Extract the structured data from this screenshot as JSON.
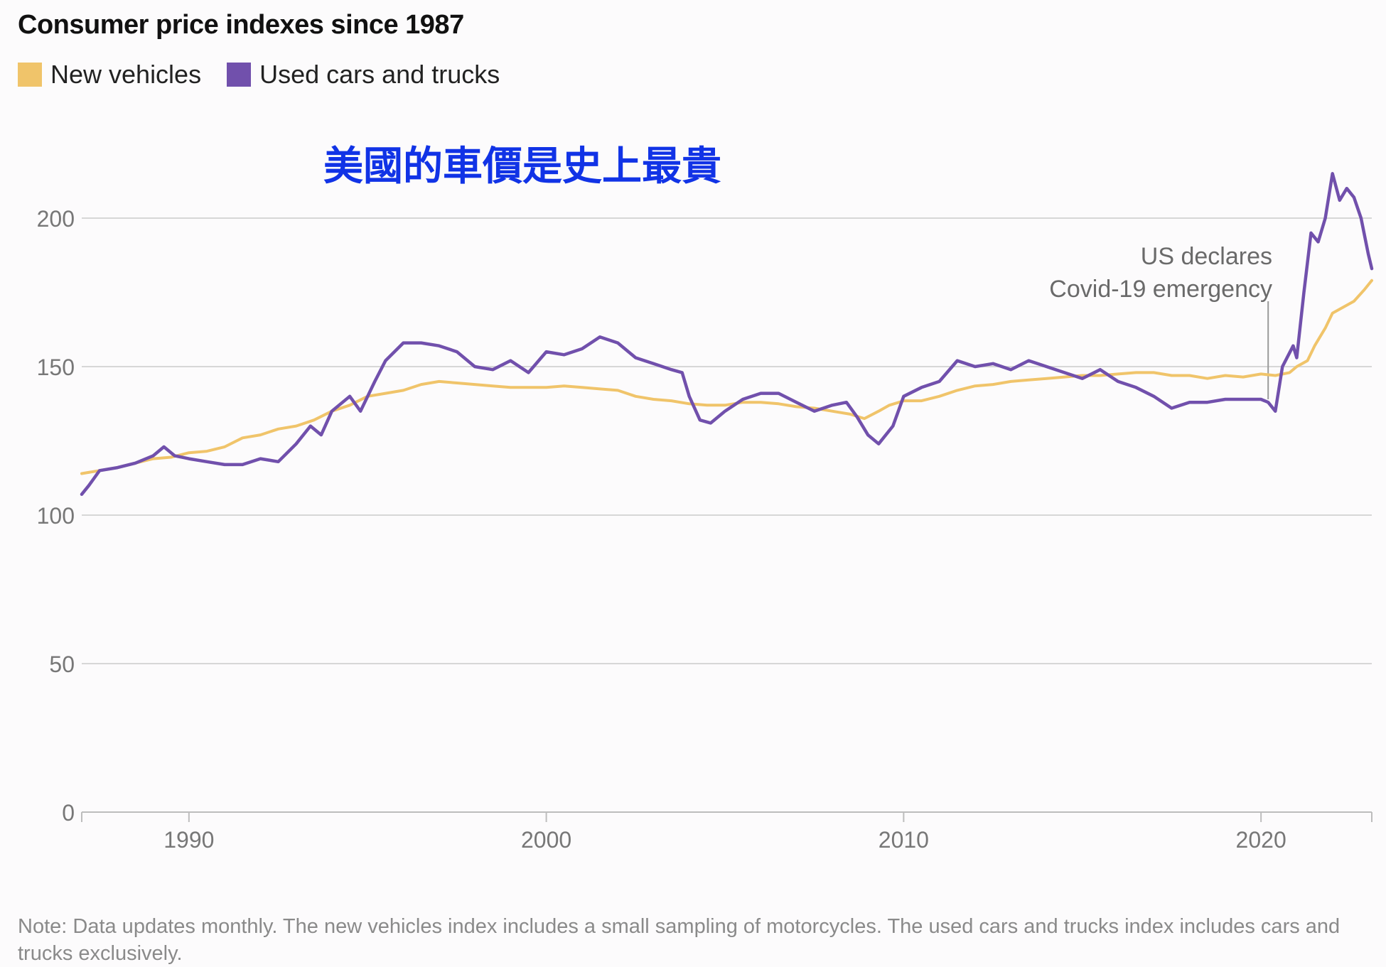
{
  "title": "Consumer price indexes since 1987",
  "legend": [
    {
      "label": "New vehicles",
      "color": "#f0c46a"
    },
    {
      "label": "Used cars and trucks",
      "color": "#7150ac"
    }
  ],
  "overlay_text": "美國的車價是史上最貴",
  "overlay_color": "#1133e6",
  "annotation": {
    "line1": "US declares",
    "line2": "Covid-19 emergency",
    "x": 2020.2
  },
  "note": "Note: Data updates monthly. The new vehicles index includes a small sampling of motorcycles. The used cars and trucks index includes cars and trucks exclusively.",
  "chart_data": {
    "type": "line",
    "xlim": [
      1987,
      2023.1
    ],
    "ylim": [
      0,
      200
    ],
    "yticks": [
      0,
      50,
      100,
      150,
      200
    ],
    "xticks": [
      1990,
      2000,
      2010,
      2020
    ],
    "grid": true,
    "legend_position": "top-left",
    "series": [
      {
        "name": "New vehicles",
        "color": "#f0c46a",
        "points": [
          [
            1987.0,
            114
          ],
          [
            1988.0,
            116
          ],
          [
            1988.5,
            117.5
          ],
          [
            1989.0,
            119
          ],
          [
            1989.5,
            119.5
          ],
          [
            1990.0,
            121
          ],
          [
            1990.5,
            121.5
          ],
          [
            1991.0,
            123
          ],
          [
            1991.5,
            126
          ],
          [
            1992.0,
            127
          ],
          [
            1992.5,
            129
          ],
          [
            1993.0,
            130
          ],
          [
            1993.5,
            132
          ],
          [
            1994.0,
            135
          ],
          [
            1994.5,
            137
          ],
          [
            1995.0,
            140
          ],
          [
            1995.5,
            141
          ],
          [
            1996.0,
            142
          ],
          [
            1996.5,
            144
          ],
          [
            1997.0,
            145
          ],
          [
            1997.5,
            144.5
          ],
          [
            1998.0,
            144
          ],
          [
            1998.5,
            143.5
          ],
          [
            1999.0,
            143
          ],
          [
            1999.5,
            143
          ],
          [
            2000.0,
            143
          ],
          [
            2000.5,
            143.5
          ],
          [
            2001.0,
            143
          ],
          [
            2001.5,
            142.5
          ],
          [
            2002.0,
            142
          ],
          [
            2002.5,
            140
          ],
          [
            2003.0,
            139
          ],
          [
            2003.5,
            138.5
          ],
          [
            2004.0,
            137.5
          ],
          [
            2004.5,
            137
          ],
          [
            2005.0,
            137
          ],
          [
            2005.5,
            138
          ],
          [
            2006.0,
            138
          ],
          [
            2006.5,
            137.5
          ],
          [
            2007.0,
            136.5
          ],
          [
            2007.5,
            136
          ],
          [
            2008.0,
            135
          ],
          [
            2008.5,
            134
          ],
          [
            2008.9,
            132.5
          ],
          [
            2009.3,
            135
          ],
          [
            2009.6,
            137
          ],
          [
            2010.0,
            138.5
          ],
          [
            2010.5,
            138.5
          ],
          [
            2011.0,
            140
          ],
          [
            2011.5,
            142
          ],
          [
            2012.0,
            143.5
          ],
          [
            2012.5,
            144
          ],
          [
            2013.0,
            145
          ],
          [
            2013.5,
            145.5
          ],
          [
            2014.0,
            146
          ],
          [
            2014.5,
            146.5
          ],
          [
            2015.0,
            147
          ],
          [
            2015.5,
            147
          ],
          [
            2016.0,
            147.5
          ],
          [
            2016.5,
            148
          ],
          [
            2017.0,
            148
          ],
          [
            2017.5,
            147
          ],
          [
            2018.0,
            147
          ],
          [
            2018.5,
            146
          ],
          [
            2019.0,
            147
          ],
          [
            2019.5,
            146.5
          ],
          [
            2020.0,
            147.5
          ],
          [
            2020.4,
            147
          ],
          [
            2020.8,
            148
          ],
          [
            2021.0,
            150
          ],
          [
            2021.3,
            152
          ],
          [
            2021.5,
            157
          ],
          [
            2021.8,
            163
          ],
          [
            2022.0,
            168
          ],
          [
            2022.3,
            170
          ],
          [
            2022.6,
            172
          ],
          [
            2022.9,
            176
          ],
          [
            2023.1,
            179
          ]
        ]
      },
      {
        "name": "Used cars and trucks",
        "color": "#7150ac",
        "points": [
          [
            1987.0,
            107
          ],
          [
            1987.2,
            110
          ],
          [
            1987.5,
            115
          ],
          [
            1988.0,
            116
          ],
          [
            1988.5,
            117.5
          ],
          [
            1989.0,
            120
          ],
          [
            1989.3,
            123
          ],
          [
            1989.6,
            120
          ],
          [
            1990.0,
            119
          ],
          [
            1990.5,
            118
          ],
          [
            1991.0,
            117
          ],
          [
            1991.5,
            117
          ],
          [
            1992.0,
            119
          ],
          [
            1992.5,
            118
          ],
          [
            1993.0,
            124
          ],
          [
            1993.4,
            130
          ],
          [
            1993.7,
            127
          ],
          [
            1994.0,
            135
          ],
          [
            1994.5,
            140
          ],
          [
            1994.8,
            135
          ],
          [
            1995.2,
            145
          ],
          [
            1995.5,
            152
          ],
          [
            1996.0,
            158
          ],
          [
            1996.5,
            158
          ],
          [
            1997.0,
            157
          ],
          [
            1997.5,
            155
          ],
          [
            1998.0,
            150
          ],
          [
            1998.5,
            149
          ],
          [
            1999.0,
            152
          ],
          [
            1999.5,
            148
          ],
          [
            2000.0,
            155
          ],
          [
            2000.5,
            154
          ],
          [
            2001.0,
            156
          ],
          [
            2001.5,
            160
          ],
          [
            2002.0,
            158
          ],
          [
            2002.5,
            153
          ],
          [
            2003.0,
            151
          ],
          [
            2003.5,
            149
          ],
          [
            2003.8,
            148
          ],
          [
            2004.0,
            140
          ],
          [
            2004.3,
            132
          ],
          [
            2004.6,
            131
          ],
          [
            2005.0,
            135
          ],
          [
            2005.5,
            139
          ],
          [
            2006.0,
            141
          ],
          [
            2006.5,
            141
          ],
          [
            2007.0,
            138
          ],
          [
            2007.5,
            135
          ],
          [
            2008.0,
            137
          ],
          [
            2008.4,
            138
          ],
          [
            2008.7,
            133
          ],
          [
            2009.0,
            127
          ],
          [
            2009.3,
            124
          ],
          [
            2009.7,
            130
          ],
          [
            2010.0,
            140
          ],
          [
            2010.5,
            143
          ],
          [
            2011.0,
            145
          ],
          [
            2011.5,
            152
          ],
          [
            2012.0,
            150
          ],
          [
            2012.5,
            151
          ],
          [
            2013.0,
            149
          ],
          [
            2013.5,
            152
          ],
          [
            2014.0,
            150
          ],
          [
            2014.5,
            148
          ],
          [
            2015.0,
            146
          ],
          [
            2015.5,
            149
          ],
          [
            2016.0,
            145
          ],
          [
            2016.5,
            143
          ],
          [
            2017.0,
            140
          ],
          [
            2017.5,
            136
          ],
          [
            2018.0,
            138
          ],
          [
            2018.5,
            138
          ],
          [
            2019.0,
            139
          ],
          [
            2019.5,
            139
          ],
          [
            2020.0,
            139
          ],
          [
            2020.2,
            138
          ],
          [
            2020.4,
            135
          ],
          [
            2020.6,
            150
          ],
          [
            2020.9,
            157
          ],
          [
            2021.0,
            153
          ],
          [
            2021.2,
            175
          ],
          [
            2021.4,
            195
          ],
          [
            2021.6,
            192
          ],
          [
            2021.8,
            200
          ],
          [
            2022.0,
            215
          ],
          [
            2022.2,
            206
          ],
          [
            2022.4,
            210
          ],
          [
            2022.6,
            207
          ],
          [
            2022.8,
            200
          ],
          [
            2023.0,
            188
          ],
          [
            2023.1,
            183
          ]
        ]
      }
    ]
  }
}
